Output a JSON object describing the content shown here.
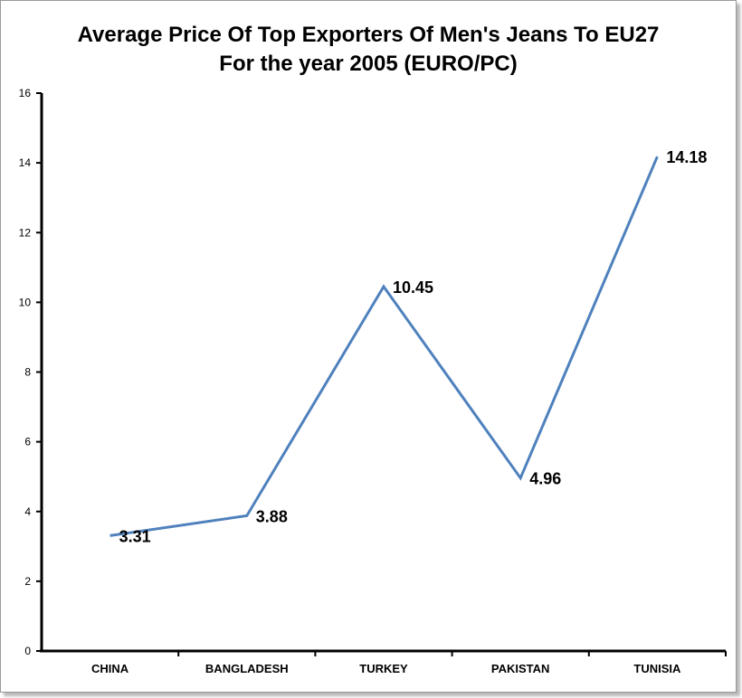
{
  "chart_data": {
    "type": "line",
    "title": "Average Price Of Top Exporters Of Men's Jeans To EU27",
    "subtitle": "For the year 2005 (EURO/PC)",
    "categories": [
      "CHINA",
      "BANGLADESH",
      "TURKEY",
      "PAKISTAN",
      "TUNISIA"
    ],
    "series": [
      {
        "values": [
          3.31,
          3.88,
          10.45,
          4.96,
          14.18
        ],
        "color": "#4f81bd"
      }
    ],
    "data_labels": [
      "3.31",
      "3.88",
      "10.45",
      "4.96",
      "14.18"
    ],
    "ylim": [
      0,
      16
    ],
    "yticks": [
      0,
      2,
      4,
      6,
      8,
      10,
      12,
      14,
      16
    ],
    "grid": false,
    "legend": "none"
  }
}
